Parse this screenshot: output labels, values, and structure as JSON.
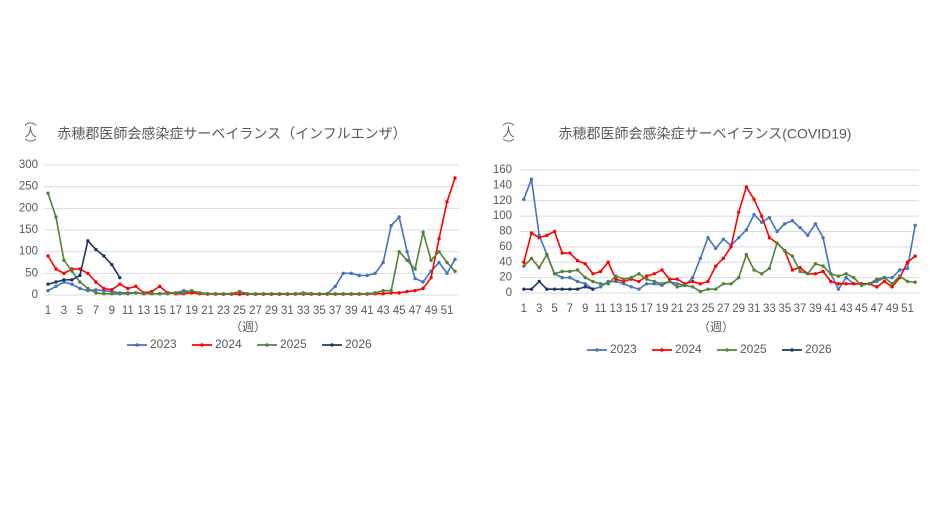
{
  "chart_data": [
    {
      "type": "line",
      "title": "赤穂郡医師会感染症サーベイランス（インフルエンザ）",
      "ylabel": "（人）",
      "xlabel": "（週）",
      "x": [
        1,
        2,
        3,
        4,
        5,
        6,
        7,
        8,
        9,
        10,
        11,
        12,
        13,
        14,
        15,
        16,
        17,
        18,
        19,
        20,
        21,
        22,
        23,
        24,
        25,
        26,
        27,
        28,
        29,
        30,
        31,
        32,
        33,
        34,
        35,
        36,
        37,
        38,
        39,
        40,
        41,
        42,
        43,
        44,
        45,
        46,
        47,
        48,
        49,
        50,
        51,
        52
      ],
      "xlim": [
        0.5,
        52.5
      ],
      "xticks": [
        1,
        3,
        5,
        7,
        9,
        11,
        13,
        15,
        17,
        19,
        21,
        23,
        25,
        27,
        29,
        31,
        33,
        35,
        37,
        39,
        41,
        43,
        45,
        47,
        49,
        51
      ],
      "ylim": [
        0,
        300
      ],
      "yticks": [
        0,
        50,
        100,
        150,
        200,
        250,
        300
      ],
      "grid": true,
      "legend": "bottom",
      "markers": true,
      "series": [
        {
          "name": "2023",
          "color": "#4472c4",
          "values": [
            10,
            20,
            30,
            25,
            15,
            10,
            12,
            10,
            8,
            5,
            5,
            5,
            3,
            3,
            3,
            5,
            5,
            10,
            8,
            5,
            3,
            3,
            2,
            2,
            2,
            3,
            2,
            2,
            2,
            2,
            2,
            3,
            5,
            3,
            2,
            3,
            20,
            50,
            50,
            45,
            45,
            50,
            75,
            160,
            180,
            100,
            38,
            30,
            55,
            75,
            50,
            82
          ]
        },
        {
          "name": "2024",
          "color": "#ff0000",
          "values": [
            90,
            60,
            50,
            60,
            60,
            50,
            30,
            15,
            12,
            25,
            15,
            20,
            5,
            8,
            20,
            5,
            3,
            3,
            5,
            3,
            2,
            2,
            2,
            2,
            2,
            2,
            2,
            2,
            2,
            2,
            2,
            2,
            2,
            2,
            2,
            2,
            2,
            2,
            2,
            2,
            2,
            3,
            3,
            5,
            5,
            8,
            10,
            15,
            40,
            130,
            215,
            270
          ]
        },
        {
          "name": "2025",
          "color": "#548235",
          "values": [
            235,
            180,
            80,
            55,
            30,
            15,
            5,
            3,
            3,
            3,
            3,
            5,
            3,
            3,
            3,
            3,
            5,
            5,
            10,
            5,
            3,
            3,
            3,
            3,
            8,
            3,
            3,
            3,
            3,
            3,
            3,
            3,
            3,
            3,
            3,
            3,
            3,
            3,
            3,
            3,
            3,
            5,
            10,
            10,
            100,
            80,
            60,
            145,
            80,
            100,
            75,
            55
          ]
        },
        {
          "name": "2026",
          "color": "#1f3864",
          "values": [
            25,
            30,
            35,
            35,
            45,
            125,
            105,
            90,
            70,
            40,
            null,
            null,
            null,
            null,
            null,
            null,
            null,
            null,
            null,
            null,
            null,
            null,
            null,
            null,
            null,
            null,
            null,
            null,
            null,
            null,
            null,
            null,
            null,
            null,
            null,
            null,
            null,
            null,
            null,
            null,
            null,
            null,
            null,
            null,
            null,
            null,
            null,
            null,
            null,
            null,
            null,
            null
          ]
        }
      ]
    },
    {
      "type": "line",
      "title": "赤穂郡医師会感染症サーベイランス(COVID19)",
      "ylabel": "（人）",
      "xlabel": "（週）",
      "x": [
        1,
        2,
        3,
        4,
        5,
        6,
        7,
        8,
        9,
        10,
        11,
        12,
        13,
        14,
        15,
        16,
        17,
        18,
        19,
        20,
        21,
        22,
        23,
        24,
        25,
        26,
        27,
        28,
        29,
        30,
        31,
        32,
        33,
        34,
        35,
        36,
        37,
        38,
        39,
        40,
        41,
        42,
        43,
        44,
        45,
        46,
        47,
        48,
        49,
        50,
        51,
        52
      ],
      "xlim": [
        0.5,
        52.5
      ],
      "xticks": [
        1,
        3,
        5,
        7,
        9,
        11,
        13,
        15,
        17,
        19,
        21,
        23,
        25,
        27,
        29,
        31,
        33,
        35,
        37,
        39,
        41,
        43,
        45,
        47,
        49,
        51
      ],
      "ylim": [
        0,
        160
      ],
      "yticks": [
        0,
        20,
        40,
        60,
        80,
        100,
        120,
        140,
        160
      ],
      "grid": true,
      "legend": "bottom",
      "markers": true,
      "series": [
        {
          "name": "2023",
          "color": "#4472c4",
          "values": [
            122,
            148,
            75,
            50,
            25,
            20,
            20,
            15,
            12,
            5,
            8,
            15,
            15,
            12,
            8,
            5,
            12,
            12,
            10,
            15,
            12,
            10,
            20,
            45,
            72,
            58,
            70,
            62,
            72,
            82,
            102,
            92,
            98,
            80,
            90,
            94,
            85,
            75,
            90,
            72,
            25,
            5,
            20,
            12,
            12,
            12,
            15,
            20,
            20,
            30,
            32,
            88
          ]
        },
        {
          "name": "2024",
          "color": "#ff0000",
          "values": [
            40,
            78,
            72,
            75,
            80,
            52,
            52,
            42,
            38,
            25,
            28,
            40,
            18,
            15,
            18,
            15,
            22,
            25,
            30,
            18,
            18,
            12,
            15,
            12,
            15,
            35,
            45,
            60,
            105,
            138,
            122,
            100,
            72,
            65,
            55,
            30,
            33,
            25,
            25,
            28,
            15,
            12,
            12,
            12,
            12,
            12,
            8,
            15,
            8,
            20,
            40,
            48
          ]
        },
        {
          "name": "2025",
          "color": "#548235",
          "values": [
            35,
            45,
            33,
            50,
            25,
            28,
            28,
            30,
            20,
            15,
            12,
            12,
            22,
            18,
            20,
            25,
            18,
            15,
            12,
            15,
            8,
            10,
            8,
            2,
            5,
            5,
            12,
            12,
            20,
            50,
            30,
            25,
            32,
            65,
            55,
            48,
            28,
            25,
            38,
            35,
            25,
            22,
            25,
            20,
            10,
            12,
            18,
            20,
            12,
            22,
            15,
            14
          ]
        },
        {
          "name": "2026",
          "color": "#1f3864",
          "values": [
            5,
            5,
            15,
            5,
            5,
            5,
            5,
            5,
            8,
            5,
            null,
            null,
            null,
            null,
            null,
            null,
            null,
            null,
            null,
            null,
            null,
            null,
            null,
            null,
            null,
            null,
            null,
            null,
            null,
            null,
            null,
            null,
            null,
            null,
            null,
            null,
            null,
            null,
            null,
            null,
            null,
            null,
            null,
            null,
            null,
            null,
            null,
            null,
            null,
            null,
            null,
            null
          ]
        }
      ]
    }
  ]
}
